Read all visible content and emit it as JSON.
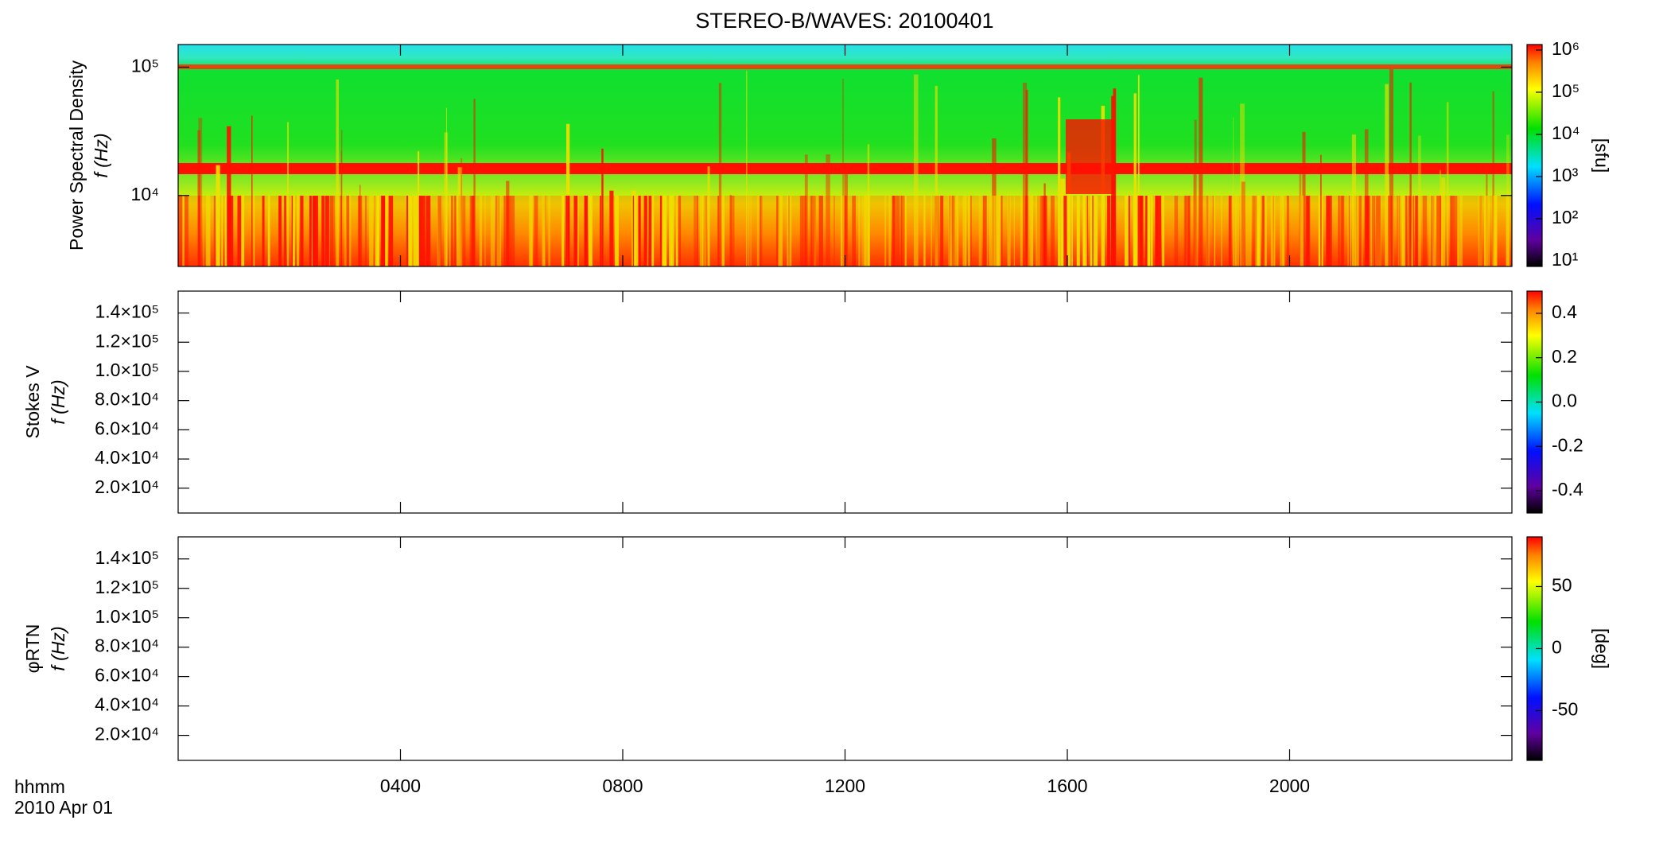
{
  "chart_data": [
    {
      "type": "heatmap",
      "title": "STEREO-B/WAVES: 20100401",
      "ylabel": [
        "Power Spectral Density",
        "f (Hz)"
      ],
      "yscale": "log",
      "ylim": [
        2800,
        150000
      ],
      "yticks": [
        {
          "value": 10000,
          "label": "10⁴"
        },
        {
          "value": 100000,
          "label": "10⁵"
        }
      ],
      "colorbar": {
        "zscale": "log",
        "zlim": [
          7.4,
          1350000
        ],
        "label": "[sfu]",
        "zticks": [
          {
            "value": 10,
            "label": "10¹"
          },
          {
            "value": 100,
            "label": "10²"
          },
          {
            "value": 1000,
            "label": "10³"
          },
          {
            "value": 10000,
            "label": "10⁴"
          },
          {
            "value": 100000,
            "label": "10⁵"
          },
          {
            "value": 1000000,
            "label": "10⁶"
          }
        ]
      }
    },
    {
      "type": "heatmap",
      "ylabel": [
        "Stokes V",
        "f (Hz)"
      ],
      "yscale": "linear",
      "ylim": [
        3000,
        155000
      ],
      "yticks": [
        {
          "value": 20000,
          "label": "2.0×10⁴"
        },
        {
          "value": 40000,
          "label": "4.0×10⁴"
        },
        {
          "value": 60000,
          "label": "6.0×10⁴"
        },
        {
          "value": 80000,
          "label": "8.0×10⁴"
        },
        {
          "value": 100000,
          "label": "1.0×10⁵"
        },
        {
          "value": 120000,
          "label": "1.2×10⁵"
        },
        {
          "value": 140000,
          "label": "1.4×10⁵"
        }
      ],
      "colorbar": {
        "zscale": "linear",
        "zlim": [
          -0.5,
          0.5
        ],
        "zticks": [
          -0.4,
          -0.2,
          {
            "value": 0,
            "label": "0.0"
          },
          0.2,
          0.4
        ]
      }
    },
    {
      "type": "heatmap",
      "ylabel": [
        "φRTN",
        "f (Hz)"
      ],
      "yscale": "linear",
      "ylim": [
        3000,
        155000
      ],
      "yticks": [
        {
          "value": 20000,
          "label": "2.0×10⁴"
        },
        {
          "value": 40000,
          "label": "4.0×10⁴"
        },
        {
          "value": 60000,
          "label": "6.0×10⁴"
        },
        {
          "value": 80000,
          "label": "8.0×10⁴"
        },
        {
          "value": 100000,
          "label": "1.0×10⁵"
        },
        {
          "value": 120000,
          "label": "1.2×10⁵"
        },
        {
          "value": 140000,
          "label": "1.4×10⁵"
        }
      ],
      "colorbar": {
        "zscale": "linear",
        "zlim": [
          -90,
          90
        ],
        "label": "[deg]",
        "zticks": [
          -50,
          0,
          50
        ]
      },
      "x_label": "hhmm",
      "date": "2010 Apr 01",
      "xlim": [
        0,
        24
      ],
      "xticks": [
        {
          "value": 4,
          "label": "0400"
        },
        {
          "value": 8,
          "label": "0800"
        },
        {
          "value": 12,
          "label": "1200"
        },
        {
          "value": 16,
          "label": "1600"
        },
        {
          "value": 20,
          "label": "2000"
        }
      ]
    }
  ]
}
